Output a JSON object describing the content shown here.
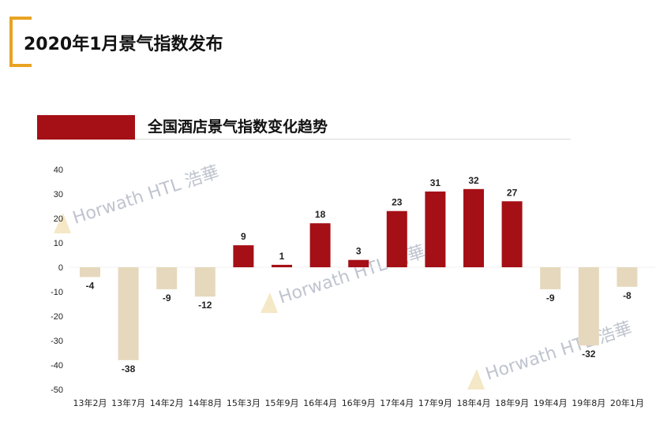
{
  "page": {
    "title": "2020年1月景气指数发布"
  },
  "colors": {
    "accent": "#E8A321",
    "positive": "#A50F16",
    "negative": "#E6D8BC",
    "watermark": "#bfc4cf"
  },
  "watermark": {
    "text": "Horwath HTL 浩華"
  },
  "chart_data": {
    "type": "bar",
    "title": "全国酒店景气指数变化趋势",
    "categories": [
      "13年2月",
      "13年7月",
      "14年2月",
      "14年8月",
      "15年3月",
      "15年9月",
      "16年4月",
      "16年9月",
      "17年4月",
      "17年9月",
      "18年4月",
      "18年9月",
      "19年4月",
      "19年8月",
      "20年1月"
    ],
    "values": [
      -4,
      -38,
      -9,
      -12,
      9,
      1,
      18,
      3,
      23,
      31,
      32,
      27,
      -9,
      -32,
      -8
    ],
    "ylim": [
      -50,
      40
    ],
    "yticks": [
      40,
      30,
      20,
      10,
      0,
      -10,
      -20,
      -30,
      -40,
      -50
    ],
    "grid": false
  }
}
